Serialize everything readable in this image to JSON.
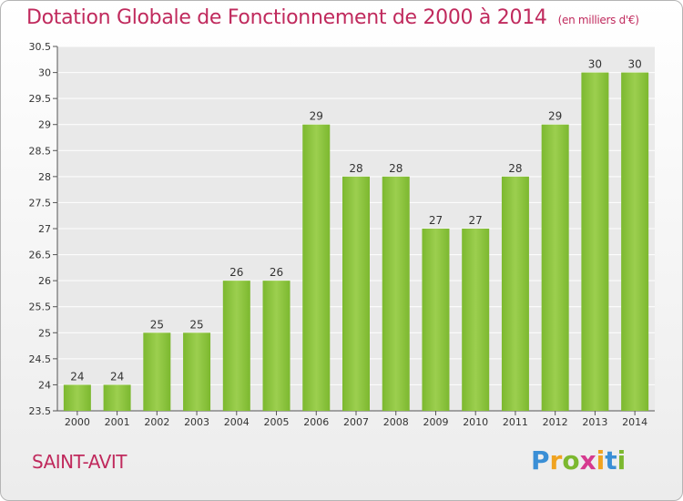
{
  "chart_data": {
    "type": "bar",
    "title": "Dotation Globale de Fonctionnement de 2000 à 2014",
    "subtitle": "(en milliers d'€)",
    "categories": [
      "2000",
      "2001",
      "2002",
      "2003",
      "2004",
      "2005",
      "2006",
      "2007",
      "2008",
      "2009",
      "2010",
      "2011",
      "2012",
      "2013",
      "2014"
    ],
    "values": [
      24,
      24,
      25,
      25,
      26,
      26,
      29,
      28,
      28,
      27,
      27,
      28,
      29,
      30,
      30
    ],
    "ylim": [
      23.5,
      30.5
    ],
    "yticks": [
      23.5,
      24,
      24.5,
      25,
      25.5,
      26,
      26.5,
      27,
      27.5,
      28,
      28.5,
      29,
      29.5,
      30,
      30.5
    ],
    "grid": true,
    "bar_color": "#7cb82f",
    "bar_color_light": "#9ccf4f"
  },
  "footer": {
    "commune": "SAINT-AVIT",
    "logo_letters": [
      "P",
      "r",
      "o",
      "x",
      "i",
      "t",
      "i"
    ],
    "logo_colors": [
      "#3a8fd6",
      "#f0a320",
      "#7cb82f",
      "#d63a8f",
      "#f0a320",
      "#3a8fd6",
      "#7cb82f"
    ]
  }
}
